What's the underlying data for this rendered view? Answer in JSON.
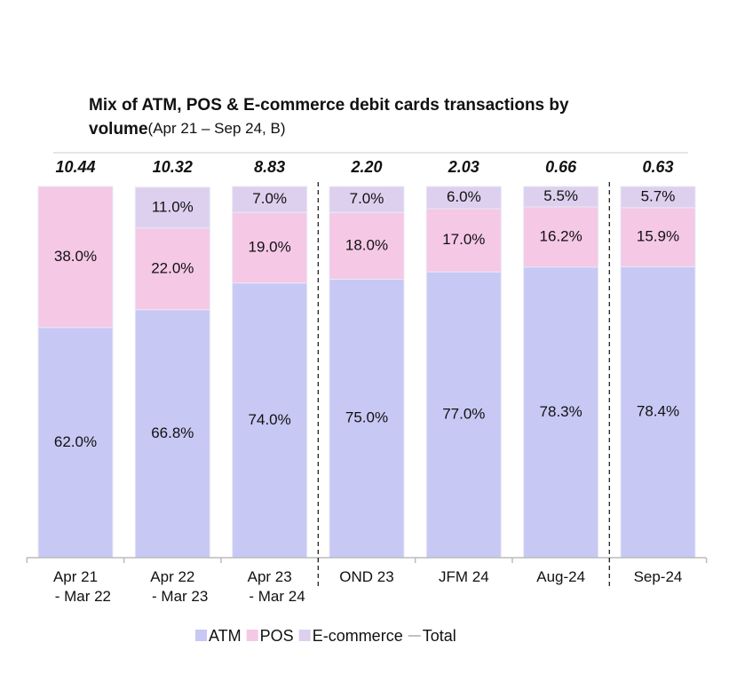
{
  "chart_data": {
    "type": "stacked_bar_100",
    "title": [
      "Mix of ATM, POS & E-commerce debit cards transactions by",
      "volume"
    ],
    "subtitle": "(Apr 21 – Sep 24, B)",
    "categories": [
      [
        "Apr 21",
        " - Mar 22"
      ],
      [
        "Apr 22",
        " - Mar 23"
      ],
      [
        "Apr 23",
        " - Mar 24"
      ],
      [
        "OND 23"
      ],
      [
        "JFM 24"
      ],
      [
        "Aug-24"
      ],
      [
        "Sep-24"
      ]
    ],
    "series": [
      {
        "name": "ATM",
        "color": "#c8c8f5",
        "values": [
          62.0,
          66.8,
          74.0,
          75.0,
          77.0,
          78.3,
          78.4
        ],
        "value_labels": [
          "62.0%",
          "66.8%",
          "74.0%",
          "75.0%",
          "77.0%",
          "78.3%",
          "78.4%"
        ]
      },
      {
        "name": "POS",
        "color": "#f5c8e6",
        "values": [
          38.0,
          22.0,
          19.0,
          18.0,
          17.0,
          16.2,
          15.9
        ],
        "value_labels": [
          "38.0%",
          "22.0%",
          "19.0%",
          "18.0%",
          "17.0%",
          "16.2%",
          "15.9%"
        ]
      },
      {
        "name": "E-commerce",
        "color": "#ddd0ee",
        "values": [
          null,
          11.0,
          7.0,
          7.0,
          6.0,
          5.5,
          5.7
        ],
        "value_labels": [
          null,
          "11.0%",
          "7.0%",
          "7.0%",
          "6.0%",
          "5.5%",
          "5.7%"
        ]
      }
    ],
    "totals": {
      "name": "Total",
      "values": [
        10.44,
        10.32,
        8.83,
        2.2,
        2.03,
        0.66,
        0.63
      ],
      "value_labels": [
        "10.44",
        "10.32",
        "8.83",
        "2.20",
        "2.03",
        "0.66",
        "0.63"
      ]
    },
    "ylim": [
      0,
      100
    ]
  }
}
